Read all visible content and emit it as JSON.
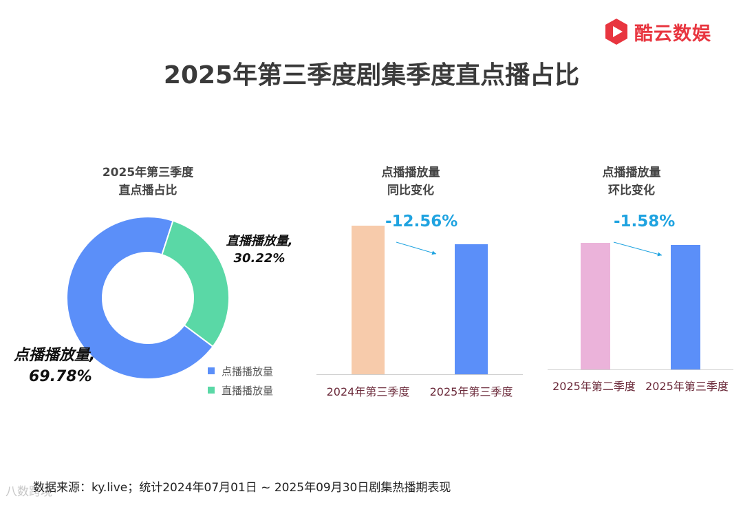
{
  "brand": {
    "name": "酷云数娱",
    "color": "#e8353f",
    "logo_icon": "play-hexagon-icon"
  },
  "page_title": "2025年第三季度剧集季度直点播占比",
  "source_note": "数据来源：ky.live；统计2024年07月01日 ~ 2025年09月30日剧集热播期表现",
  "watermark": "八数跨境",
  "chart_data": [
    {
      "type": "pie",
      "subtitle_line1": "2025年第三季度",
      "subtitle_line2": "直点播占比",
      "slices": [
        {
          "name": "点播播放量",
          "value": 69.78,
          "color": "#5b8ff9",
          "label_name": "点播播放量,",
          "label_value": "69.78%"
        },
        {
          "name": "直播播放量",
          "value": 30.22,
          "color": "#5ad8a6",
          "label_name": "直播播放量,",
          "label_value": "30.22%"
        }
      ],
      "legend_position": "bottom-right"
    },
    {
      "type": "bar",
      "subtitle_line1": "点播播放量",
      "subtitle_line2": "同比变化",
      "categories": [
        "2024年第三季度",
        "2025年第三季度"
      ],
      "values": [
        100,
        87.44
      ],
      "colors": [
        "#f7cbab",
        "#5b8ff9"
      ],
      "change_label": "-12.56%",
      "change_color": "#1fa3e0"
    },
    {
      "type": "bar",
      "subtitle_line1": "点播播放量",
      "subtitle_line2": "环比变化",
      "categories": [
        "2025年第二季度",
        "2025年第三季度"
      ],
      "values": [
        100,
        98.42
      ],
      "colors": [
        "#ebb3da",
        "#5b8ff9"
      ],
      "change_label": "-1.58%",
      "change_color": "#1fa3e0"
    }
  ]
}
